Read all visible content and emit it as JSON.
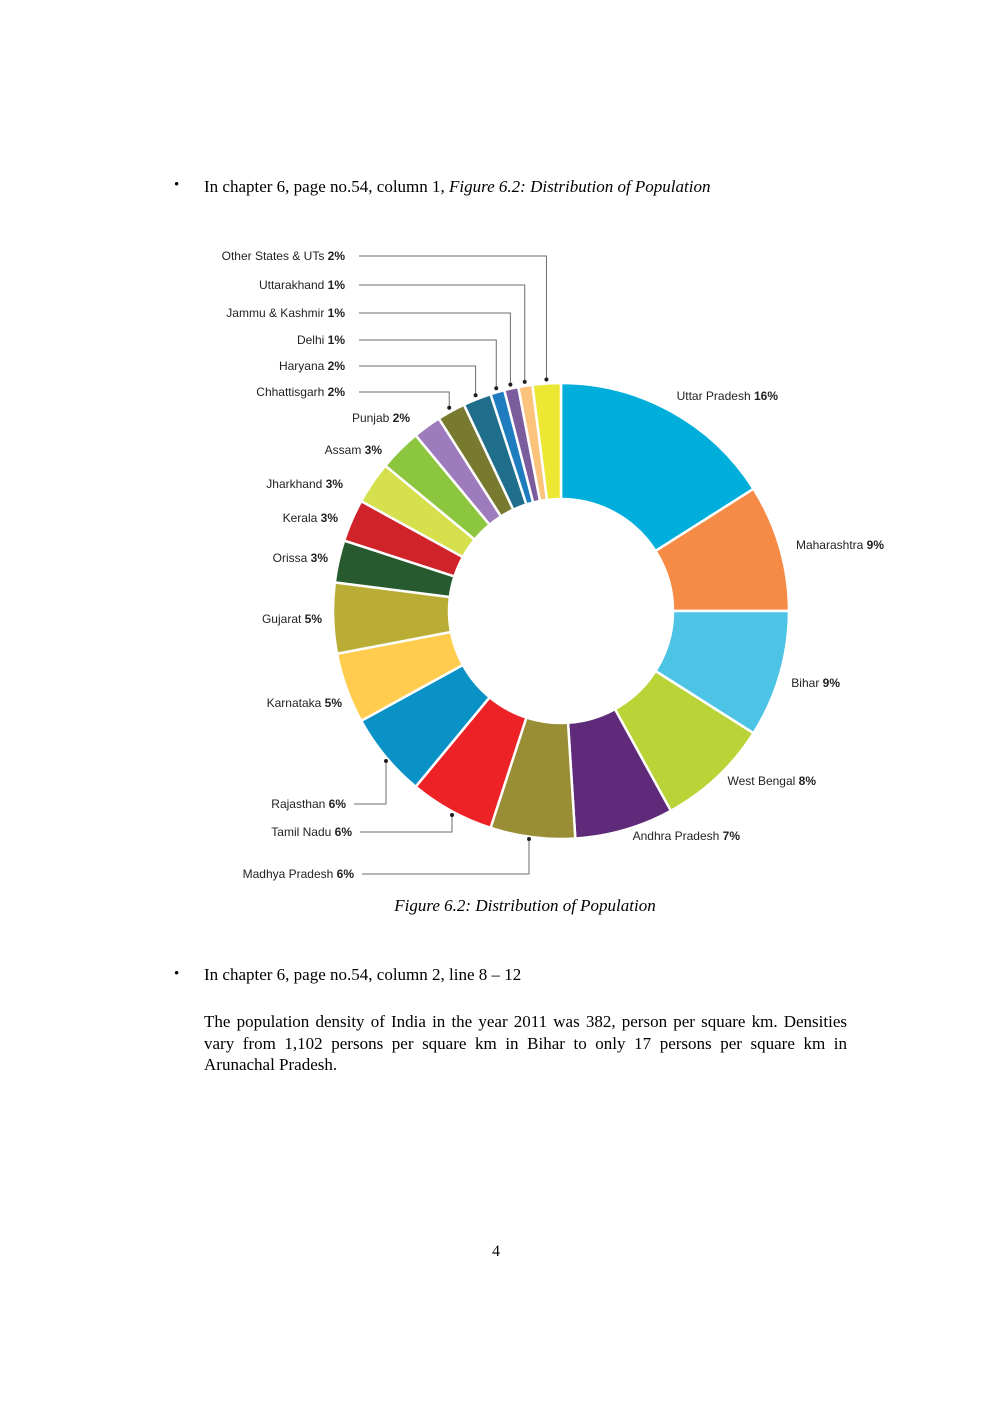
{
  "bullets": [
    {
      "symbol": "•",
      "lead": "In chapter 6, page no.54, column 1, ",
      "emph": "Figure 6.2: Distribution of Population"
    },
    {
      "symbol": "•",
      "lead": "In chapter 6, page no.54, column 2, line 8 – 12",
      "paragraph": "The population density of India in the year 2011 was 382, person per square km. Densities vary from 1,102 persons per square km in Bihar to only 17 persons per square km in Arunachal Pradesh."
    }
  ],
  "caption": "Figure 6.2: Distribution of Population",
  "page_number": "4",
  "chart_data": {
    "type": "pie",
    "style": "donut",
    "title": "",
    "start": "12 o'clock, clockwise",
    "categories": [
      "Uttar Pradesh",
      "Maharashtra",
      "Bihar",
      "West Bengal",
      "Andhra Pradesh",
      "Madhya Pradesh",
      "Tamil Nadu",
      "Rajasthan",
      "Karnataka",
      "Gujarat",
      "Orissa",
      "Kerala",
      "Jharkhand",
      "Assam",
      "Punjab",
      "Chhattisgarh",
      "Haryana",
      "Delhi",
      "Jammu & Kashmir",
      "Uttarakhand",
      "Other States & UTs"
    ],
    "values": [
      16,
      9,
      9,
      8,
      7,
      6,
      6,
      6,
      5,
      5,
      3,
      3,
      3,
      3,
      2,
      2,
      2,
      1,
      1,
      1,
      2
    ],
    "labels": [
      "Uttar Pradesh 16%",
      "Maharashtra 9%",
      "Bihar 9%",
      "West Bengal 8%",
      "Andhra Pradesh 7%",
      "Madhya Pradesh 6%",
      "Tamil Nadu 6%",
      "Rajasthan 6%",
      "Karnataka 5%",
      "Gujarat 5%",
      "Orissa 3%",
      "Kerala 3%",
      "Jharkhand 3%",
      "Assam 3%",
      "Punjab 2%",
      "Chhattisgarh 2%",
      "Haryana 2%",
      "Delhi 1%",
      "Jammu & Kashmir 1%",
      "Uttarakhand 1%",
      "Other States & UTs 2%"
    ],
    "label_parts": [
      [
        "Uttar Pradesh",
        "16%"
      ],
      [
        "Maharashtra",
        "9%"
      ],
      [
        "Bihar",
        "9%"
      ],
      [
        "West Bengal",
        "8%"
      ],
      [
        "Andhra Pradesh",
        "7%"
      ],
      [
        "Madhya Pradesh",
        "6%"
      ],
      [
        "Tamil Nadu",
        "6%"
      ],
      [
        "Rajasthan",
        "6%"
      ],
      [
        "Karnataka",
        "5%"
      ],
      [
        "Gujarat",
        "5%"
      ],
      [
        "Orissa",
        "3%"
      ],
      [
        "Kerala",
        "3%"
      ],
      [
        "Jharkhand",
        "3%"
      ],
      [
        "Assam",
        "3%"
      ],
      [
        "Punjab",
        "2%"
      ],
      [
        "Chhattisgarh",
        "2%"
      ],
      [
        "Haryana",
        "2%"
      ],
      [
        "Delhi",
        "1%"
      ],
      [
        "Jammu & Kashmir",
        "1%"
      ],
      [
        "Uttarakhand",
        "1%"
      ],
      [
        "Other States & UTs",
        "2%"
      ]
    ],
    "colors": [
      "#00aedb",
      "#f68b45",
      "#4dc4e6",
      "#bad437",
      "#5f2a79",
      "#998e35",
      "#ec2227",
      "#0a92c7",
      "#ffcc4d",
      "#b9ad35",
      "#275a2e",
      "#cf2229",
      "#d6e04c",
      "#8cc63e",
      "#9d7bbd",
      "#787a2f",
      "#1f6e8c",
      "#1f7cbf",
      "#7b5c9d",
      "#fcc37c",
      "#ece733"
    ],
    "legend": "none (labels beside slices)"
  }
}
